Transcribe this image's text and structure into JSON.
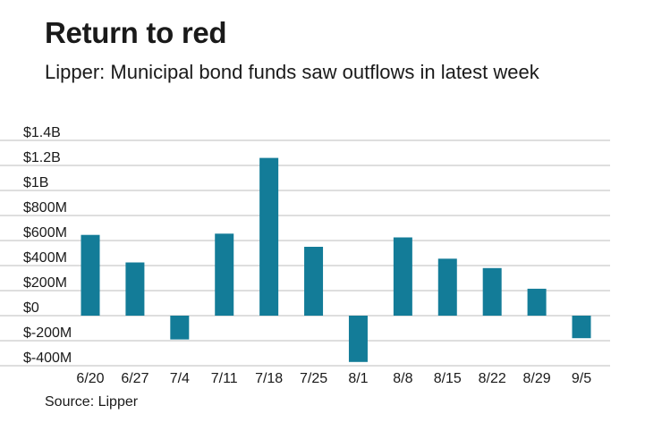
{
  "header": {
    "title": "Return to red",
    "subtitle": "Lipper: Municipal bond funds saw outflows in latest week"
  },
  "footer": {
    "source": "Source: Lipper"
  },
  "colors": {
    "bar": "#137c98",
    "grid": "#bdbdbd",
    "text": "#1a1a1a"
  },
  "chart_data": {
    "type": "bar",
    "title": "Return to red",
    "subtitle": "Lipper: Municipal bond funds saw outflows in latest week",
    "xlabel": "",
    "ylabel": "",
    "units": "USD",
    "categories": [
      "6/20",
      "6/27",
      "7/4",
      "7/11",
      "7/18",
      "7/25",
      "8/1",
      "8/8",
      "8/15",
      "8/22",
      "8/29",
      "9/5"
    ],
    "values": [
      645000000,
      425000000,
      -190000000,
      655000000,
      1260000000,
      550000000,
      -370000000,
      625000000,
      455000000,
      380000000,
      215000000,
      -180000000
    ],
    "ylim": [
      -400000000,
      1400000000
    ],
    "yticks": [
      {
        "value": 1400000000,
        "label": "$1.4B"
      },
      {
        "value": 1200000000,
        "label": "$1.2B"
      },
      {
        "value": 1000000000,
        "label": "$1B"
      },
      {
        "value": 800000000,
        "label": "$800M"
      },
      {
        "value": 600000000,
        "label": "$600M"
      },
      {
        "value": 400000000,
        "label": "$400M"
      },
      {
        "value": 200000000,
        "label": "$200M"
      },
      {
        "value": 0,
        "label": "$0"
      },
      {
        "value": -200000000,
        "label": "$-200M"
      },
      {
        "value": -400000000,
        "label": "$-400M"
      }
    ],
    "grid": true,
    "legend": "none"
  }
}
